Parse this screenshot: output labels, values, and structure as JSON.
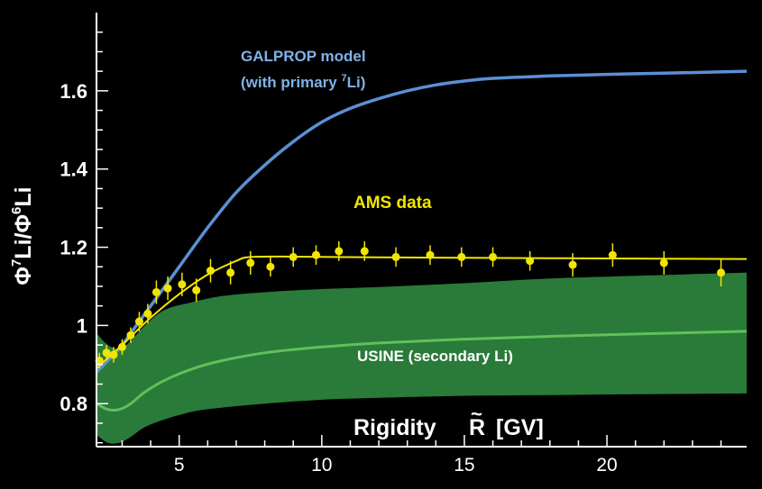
{
  "chart_data": {
    "type": "line",
    "ylabel": {
      "phi1": "Φ",
      "sup1": "7",
      "iso1": "Li",
      "slash": "/",
      "phi2": "Φ",
      "sup2": "6",
      "iso2": "Li"
    },
    "xlabel": {
      "word": "Rigidity",
      "symbol": "R",
      "tilde": "~",
      "unit": "[GV]"
    },
    "xlim": [
      2.1,
      24.9
    ],
    "ylim": [
      0.69,
      1.8
    ],
    "x_ticks": [
      5,
      10,
      15,
      20
    ],
    "y_ticks": [
      0.8,
      1,
      1.2,
      1.4,
      1.6
    ],
    "y_tick_labels": [
      "0.8",
      "1",
      "1.2",
      "1.4",
      "1.6"
    ],
    "annotations": {
      "galprop_line1": "GALPROP model",
      "galprop_line2_pre": "(with primary ",
      "galprop_line2_sup": "7",
      "galprop_line2_post": "Li)",
      "ams": "AMS data",
      "usine": "USINE (secondary Li)"
    },
    "colors": {
      "background": "#000000",
      "axes": "#ffffff",
      "galprop": "#5b8fd6",
      "galprop_text": "#7fb2e6",
      "ams": "#f2e600",
      "usine_band": "#2a7a3a",
      "usine_line": "#5fc158"
    },
    "series": [
      {
        "name": "GALPROP model",
        "x": [
          2.1,
          2.5,
          3.0,
          3.5,
          4.0,
          5.0,
          6.0,
          7.0,
          8.0,
          9.0,
          10.0,
          11.0,
          12.0,
          13.0,
          14.0,
          15.0,
          16.0,
          18.0,
          20.0,
          22.0,
          24.9
        ],
        "y": [
          0.88,
          0.91,
          0.95,
          1.0,
          1.05,
          1.15,
          1.25,
          1.34,
          1.41,
          1.47,
          1.52,
          1.555,
          1.58,
          1.6,
          1.615,
          1.625,
          1.632,
          1.638,
          1.642,
          1.645,
          1.65
        ]
      },
      {
        "name": "AMS data",
        "fit_x": [
          2.1,
          3.0,
          4.0,
          5.0,
          6.0,
          7.0,
          7.5,
          9.0,
          12.0,
          15.0,
          18.0,
          21.0,
          24.9
        ],
        "fit_y": [
          0.89,
          0.95,
          1.02,
          1.08,
          1.13,
          1.165,
          1.175,
          1.176,
          1.174,
          1.173,
          1.172,
          1.171,
          1.17
        ],
        "points": [
          {
            "x": 2.2,
            "y": 0.91,
            "err": 0.02
          },
          {
            "x": 2.45,
            "y": 0.93,
            "err": 0.02
          },
          {
            "x": 2.7,
            "y": 0.925,
            "err": 0.02
          },
          {
            "x": 3.0,
            "y": 0.945,
            "err": 0.02
          },
          {
            "x": 3.3,
            "y": 0.975,
            "err": 0.02
          },
          {
            "x": 3.6,
            "y": 1.01,
            "err": 0.025
          },
          {
            "x": 3.9,
            "y": 1.03,
            "err": 0.025
          },
          {
            "x": 4.2,
            "y": 1.085,
            "err": 0.03
          },
          {
            "x": 4.6,
            "y": 1.095,
            "err": 0.03
          },
          {
            "x": 5.1,
            "y": 1.105,
            "err": 0.03
          },
          {
            "x": 5.6,
            "y": 1.09,
            "err": 0.03
          },
          {
            "x": 6.1,
            "y": 1.14,
            "err": 0.03
          },
          {
            "x": 6.8,
            "y": 1.135,
            "err": 0.03
          },
          {
            "x": 7.5,
            "y": 1.16,
            "err": 0.03
          },
          {
            "x": 8.2,
            "y": 1.15,
            "err": 0.025
          },
          {
            "x": 9.0,
            "y": 1.175,
            "err": 0.025
          },
          {
            "x": 9.8,
            "y": 1.18,
            "err": 0.025
          },
          {
            "x": 10.6,
            "y": 1.19,
            "err": 0.025
          },
          {
            "x": 11.5,
            "y": 1.19,
            "err": 0.025
          },
          {
            "x": 12.6,
            "y": 1.175,
            "err": 0.025
          },
          {
            "x": 13.8,
            "y": 1.18,
            "err": 0.025
          },
          {
            "x": 14.9,
            "y": 1.175,
            "err": 0.025
          },
          {
            "x": 16.0,
            "y": 1.175,
            "err": 0.025
          },
          {
            "x": 17.3,
            "y": 1.165,
            "err": 0.025
          },
          {
            "x": 18.8,
            "y": 1.155,
            "err": 0.03
          },
          {
            "x": 20.2,
            "y": 1.18,
            "err": 0.03
          },
          {
            "x": 22.0,
            "y": 1.16,
            "err": 0.03
          },
          {
            "x": 24.0,
            "y": 1.135,
            "err": 0.035
          }
        ]
      },
      {
        "name": "USINE (secondary Li)",
        "x": [
          2.1,
          2.5,
          2.9,
          3.3,
          3.8,
          4.5,
          5.5,
          6.5,
          8.0,
          10.0,
          12.0,
          15.0,
          18.0,
          21.0,
          24.9
        ],
        "y": [
          0.8,
          0.785,
          0.785,
          0.8,
          0.83,
          0.86,
          0.89,
          0.91,
          0.93,
          0.945,
          0.955,
          0.965,
          0.972,
          0.978,
          0.985
        ],
        "upper": [
          0.98,
          0.95,
          0.94,
          0.96,
          1.0,
          1.04,
          1.06,
          1.075,
          1.085,
          1.093,
          1.098,
          1.108,
          1.12,
          1.127,
          1.135
        ],
        "lower": [
          0.72,
          0.7,
          0.7,
          0.715,
          0.74,
          0.76,
          0.78,
          0.79,
          0.8,
          0.81,
          0.815,
          0.82,
          0.822,
          0.824,
          0.826
        ]
      }
    ]
  }
}
